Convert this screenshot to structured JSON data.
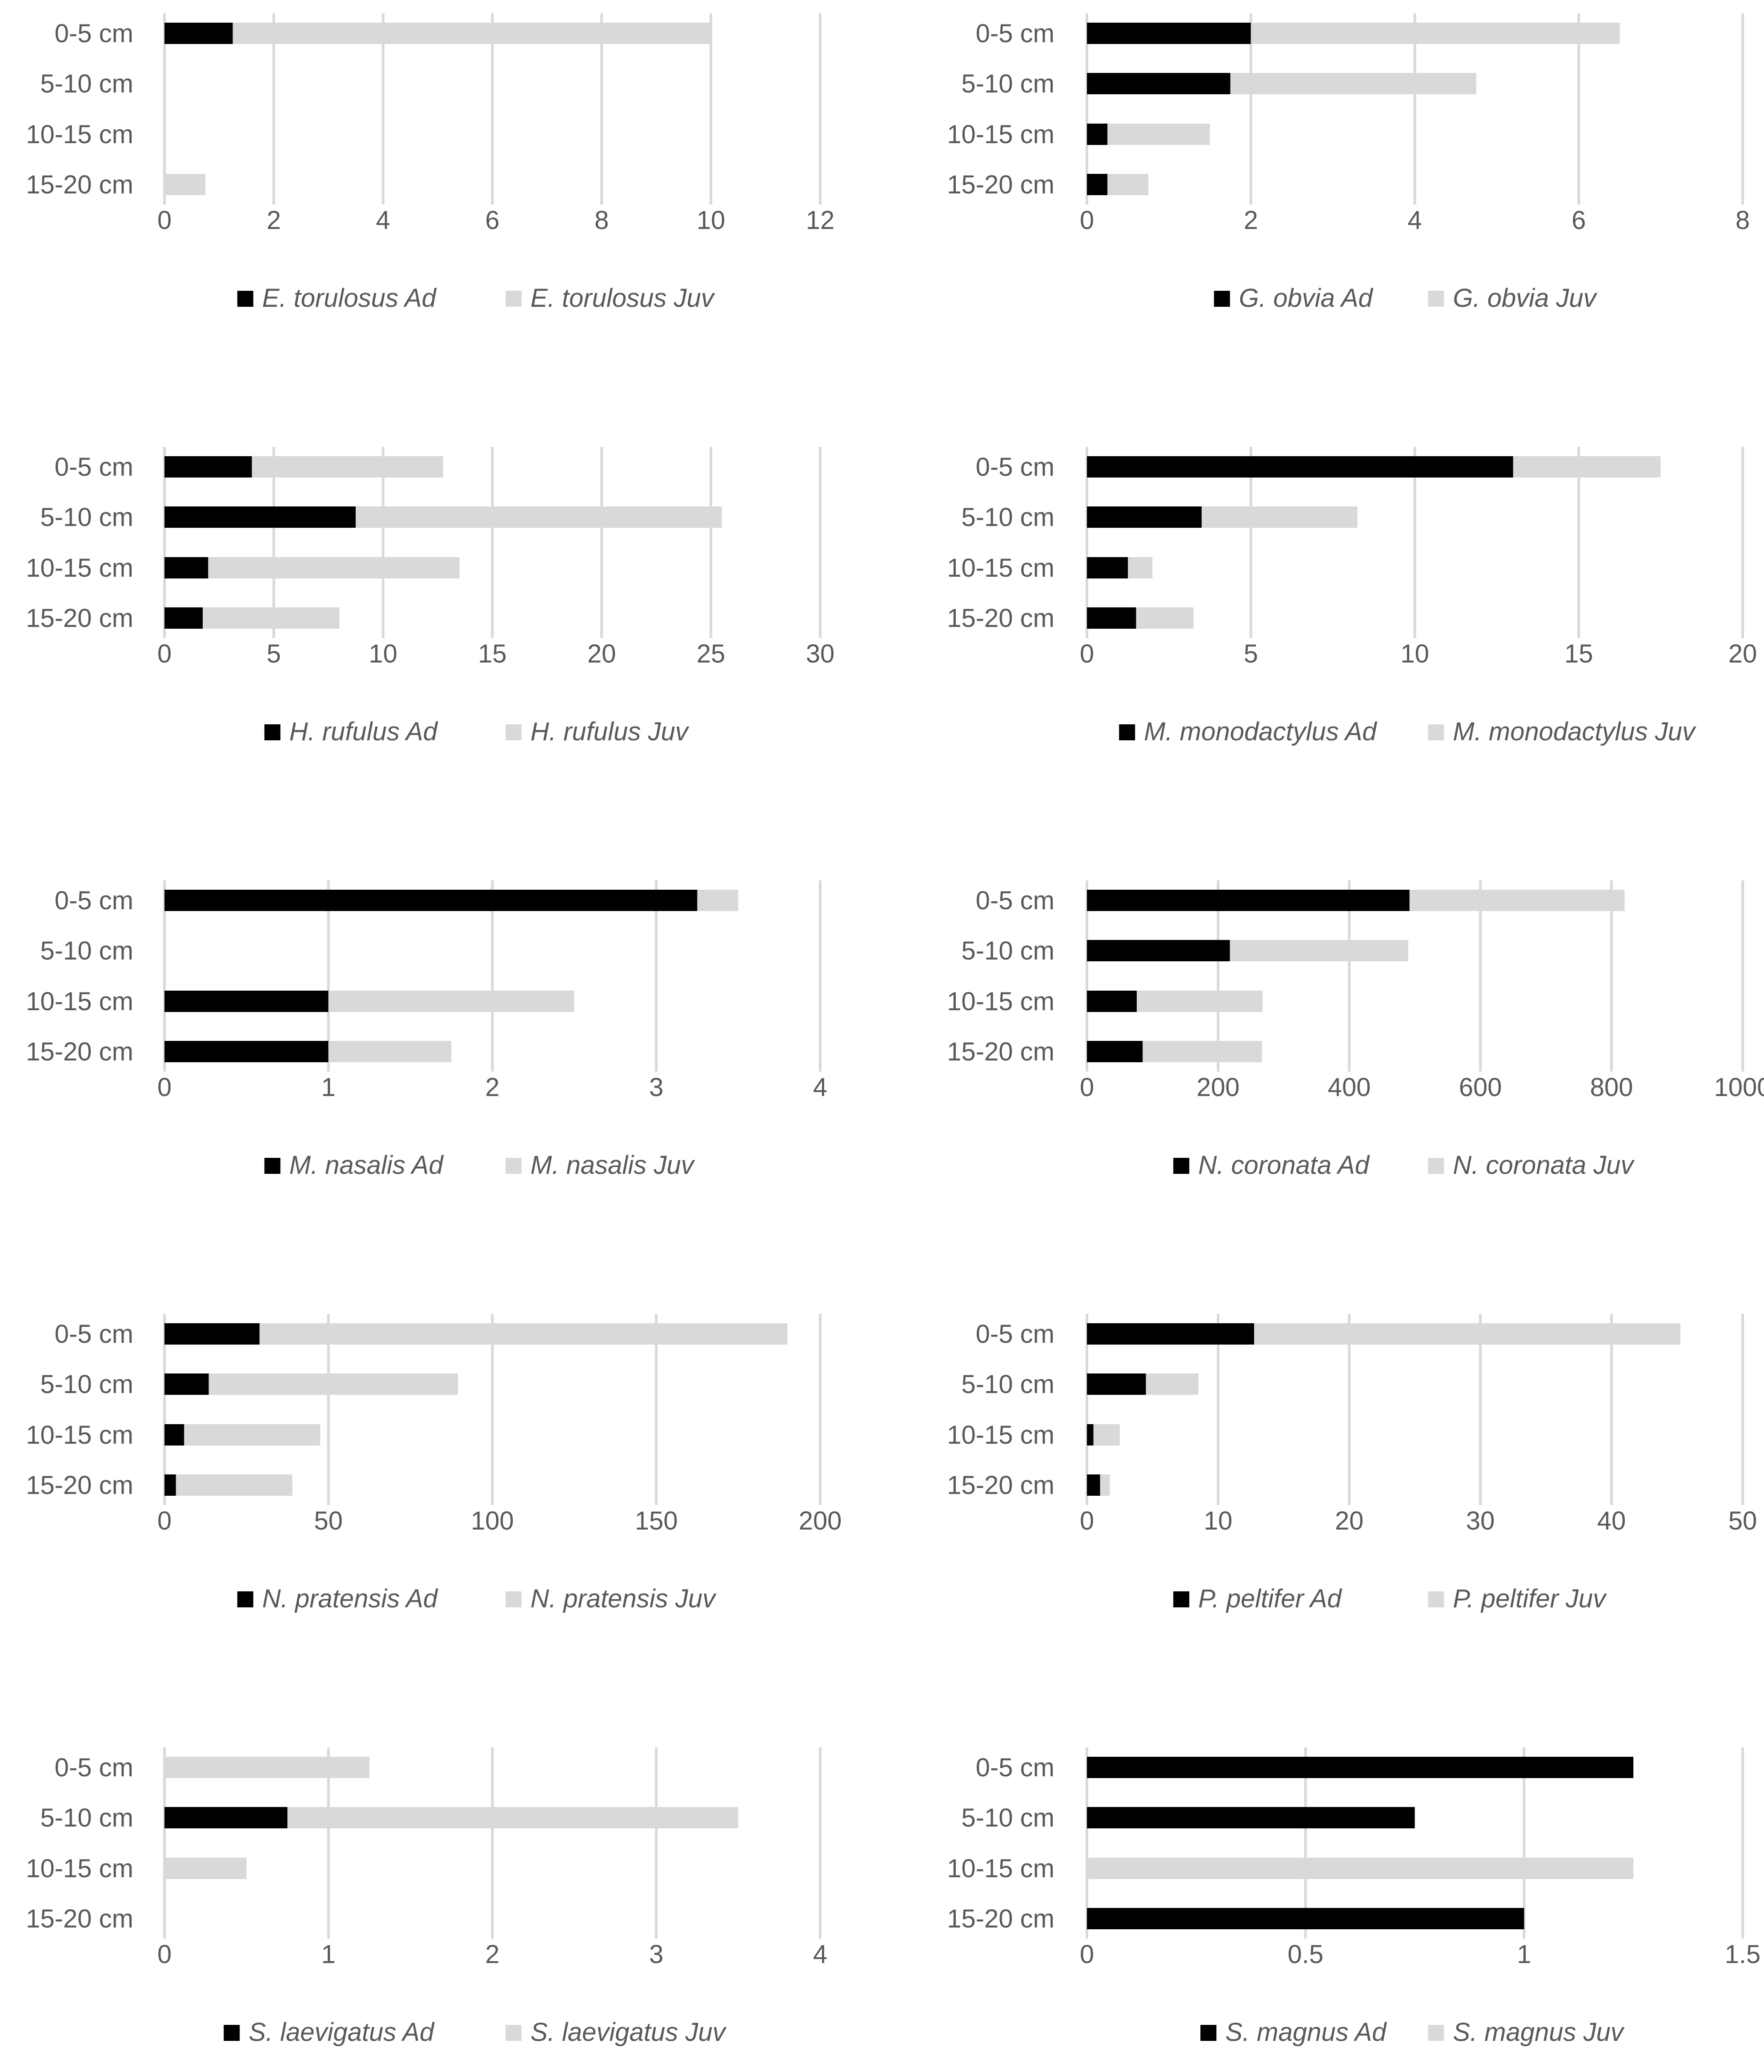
{
  "colors": {
    "adult": "#000000",
    "juvenile": "#d9d9d9",
    "gridline": "#d9d9d9",
    "text": "#595959"
  },
  "chart_data": [
    {
      "type": "bar",
      "stacked": true,
      "orientation": "horizontal",
      "categories": [
        "0-5 cm",
        "5-10 cm",
        "10-15 cm",
        "15-20 cm"
      ],
      "series": [
        {
          "name": "E. torulosus Ad",
          "values": [
            1.25,
            0,
            0,
            0
          ]
        },
        {
          "name": "E. torulosus Juv",
          "values": [
            8.75,
            0,
            0,
            0.75
          ]
        }
      ],
      "xlim": [
        0,
        12
      ],
      "xticks": [
        "0",
        "2",
        "4",
        "6",
        "8",
        "10",
        "12"
      ],
      "legend": "bottom",
      "grid": true
    },
    {
      "type": "bar",
      "stacked": true,
      "orientation": "horizontal",
      "categories": [
        "0-5 cm",
        "5-10 cm",
        "10-15 cm",
        "15-20 cm"
      ],
      "series": [
        {
          "name": "G. obvia Ad",
          "values": [
            2,
            1.75,
            0.25,
            0.25
          ]
        },
        {
          "name": "G. obvia Juv",
          "values": [
            4.5,
            3,
            1.25,
            0.5
          ]
        }
      ],
      "xlim": [
        0,
        8
      ],
      "xticks": [
        "0",
        "2",
        "4",
        "6",
        "8"
      ],
      "legend": "bottom",
      "grid": true
    },
    {
      "type": "bar",
      "stacked": true,
      "orientation": "horizontal",
      "categories": [
        "0-5 cm",
        "5-10 cm",
        "10-15 cm",
        "15-20 cm"
      ],
      "series": [
        {
          "name": "H. rufulus Ad",
          "values": [
            4,
            8.75,
            2,
            1.75
          ]
        },
        {
          "name": "H. rufulus Juv",
          "values": [
            8.75,
            16.75,
            11.5,
            6.25
          ]
        }
      ],
      "xlim": [
        0,
        30
      ],
      "xticks": [
        "0",
        "5",
        "10",
        "15",
        "20",
        "25",
        "30"
      ],
      "legend": "bottom",
      "grid": true
    },
    {
      "type": "bar",
      "stacked": true,
      "orientation": "horizontal",
      "categories": [
        "0-5 cm",
        "5-10 cm",
        "10-15 cm",
        "15-20 cm"
      ],
      "series": [
        {
          "name": "M. monodactylus Ad",
          "values": [
            13,
            3.5,
            1.25,
            1.5
          ]
        },
        {
          "name": "M. monodactylus Juv",
          "values": [
            4.5,
            4.75,
            0.75,
            1.75
          ]
        }
      ],
      "xlim": [
        0,
        20
      ],
      "xticks": [
        "0",
        "5",
        "10",
        "15",
        "20"
      ],
      "legend": "bottom",
      "grid": true
    },
    {
      "type": "bar",
      "stacked": true,
      "orientation": "horizontal",
      "categories": [
        "0-5 cm",
        "5-10 cm",
        "10-15 cm",
        "15-20 cm"
      ],
      "series": [
        {
          "name": "M. nasalis Ad",
          "values": [
            3.25,
            0,
            1,
            1
          ]
        },
        {
          "name": "M. nasalis Juv",
          "values": [
            0.25,
            0,
            1.5,
            0.75
          ]
        }
      ],
      "xlim": [
        0,
        4
      ],
      "xticks": [
        "0",
        "1",
        "2",
        "3",
        "4"
      ],
      "legend": "bottom",
      "grid": true
    },
    {
      "type": "bar",
      "stacked": true,
      "orientation": "horizontal",
      "categories": [
        "0-5 cm",
        "5-10 cm",
        "10-15 cm",
        "15-20 cm"
      ],
      "series": [
        {
          "name": "N. coronata Ad",
          "values": [
            492,
            218,
            76,
            85
          ]
        },
        {
          "name": "N. coronata Juv",
          "values": [
            328,
            272,
            192,
            182
          ]
        }
      ],
      "xlim": [
        0,
        1000
      ],
      "xticks": [
        "0",
        "200",
        "400",
        "600",
        "800",
        "1000"
      ],
      "legend": "bottom",
      "grid": true
    },
    {
      "type": "bar",
      "stacked": true,
      "orientation": "horizontal",
      "categories": [
        "0-5 cm",
        "5-10 cm",
        "10-15 cm",
        "15-20 cm"
      ],
      "series": [
        {
          "name": "N. pratensis Ad",
          "values": [
            29,
            13.5,
            6,
            3.5
          ]
        },
        {
          "name": "N. pratensis Juv",
          "values": [
            161,
            76,
            41.5,
            35.5
          ]
        }
      ],
      "xlim": [
        0,
        200
      ],
      "xticks": [
        "0",
        "50",
        "100",
        "150",
        "200"
      ],
      "legend": "bottom",
      "grid": true
    },
    {
      "type": "bar",
      "stacked": true,
      "orientation": "horizontal",
      "categories": [
        "0-5 cm",
        "5-10 cm",
        "10-15 cm",
        "15-20 cm"
      ],
      "series": [
        {
          "name": "P. peltifer Ad",
          "values": [
            12.75,
            4.5,
            0.5,
            1
          ]
        },
        {
          "name": "P. peltifer Juv",
          "values": [
            32.5,
            4,
            2,
            0.75
          ]
        }
      ],
      "xlim": [
        0,
        50
      ],
      "xticks": [
        "0",
        "10",
        "20",
        "30",
        "40",
        "50"
      ],
      "legend": "bottom",
      "grid": true
    },
    {
      "type": "bar",
      "stacked": true,
      "orientation": "horizontal",
      "categories": [
        "0-5 cm",
        "5-10 cm",
        "10-15 cm",
        "15-20 cm"
      ],
      "series": [
        {
          "name": "S. laevigatus Ad",
          "values": [
            0,
            0.75,
            0,
            0
          ]
        },
        {
          "name": "S. laevigatus Juv",
          "values": [
            1.25,
            2.75,
            0.5,
            0
          ]
        }
      ],
      "xlim": [
        0,
        4
      ],
      "xticks": [
        "0",
        "1",
        "2",
        "3",
        "4"
      ],
      "legend": "bottom",
      "grid": true
    },
    {
      "type": "bar",
      "stacked": true,
      "orientation": "horizontal",
      "categories": [
        "0-5 cm",
        "5-10 cm",
        "10-15 cm",
        "15-20 cm"
      ],
      "series": [
        {
          "name": "S. magnus Ad",
          "values": [
            1.25,
            0.75,
            0,
            1
          ]
        },
        {
          "name": "S. magnus Juv",
          "values": [
            0,
            0,
            1.25,
            0
          ]
        }
      ],
      "xlim": [
        0,
        1.5
      ],
      "xticks": [
        "0",
        "0.5",
        "1",
        "1.5"
      ],
      "legend": "bottom",
      "grid": true
    }
  ]
}
